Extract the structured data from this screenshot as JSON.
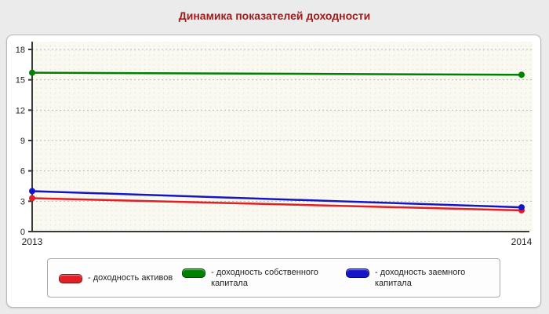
{
  "title": "Динамика показателей доходности",
  "colors": {
    "title": "#9b1c1c",
    "page_bg": "#ebebeb",
    "panel_bg": "#ffffff",
    "plot_bg": "#faf9f1",
    "grid": "#b9b9b9",
    "axis": "#3a3a3a"
  },
  "chart_data": {
    "type": "line",
    "x_labels": [
      "2013",
      "2014"
    ],
    "ylim": [
      0,
      18
    ],
    "yticks": [
      0,
      3,
      6,
      9,
      12,
      15,
      18
    ],
    "grid": true,
    "legend_position": "bottom",
    "series": [
      {
        "name": "доходность активов",
        "color": "#e31e24",
        "values": [
          3.3,
          2.1
        ]
      },
      {
        "name": "доходность собственного капитала",
        "color": "#008000",
        "values": [
          15.7,
          15.5
        ]
      },
      {
        "name": "доходность заемного капитала",
        "color": "#1515c8",
        "values": [
          4.0,
          2.4
        ]
      }
    ]
  },
  "legend": {
    "items": [
      {
        "label": "- доходность активов"
      },
      {
        "label": "- доходность собственного капитала"
      },
      {
        "label": "- доходность заемного капитала"
      }
    ]
  }
}
